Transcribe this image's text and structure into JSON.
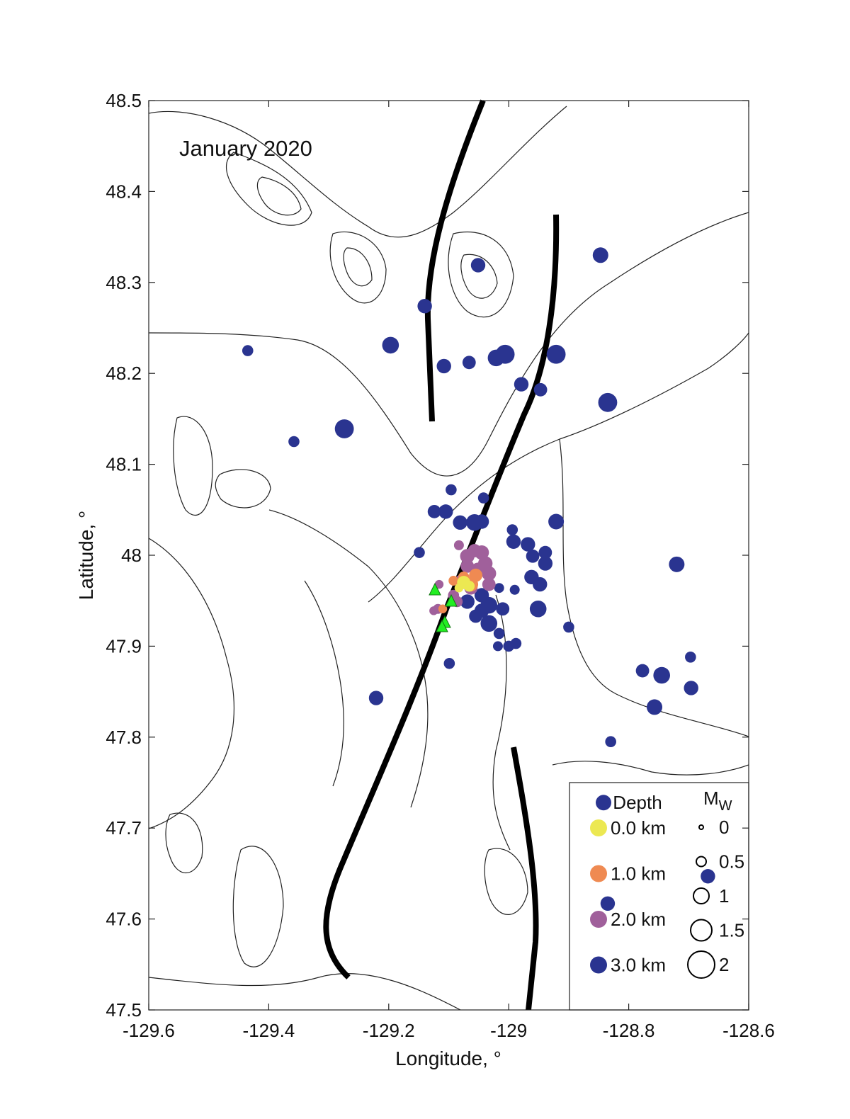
{
  "chart_data": {
    "type": "scatter",
    "title": "January 2020",
    "x_label": "Longitude, °",
    "y_label": "Latitude, °",
    "xlim": [
      -129.6,
      -128.6
    ],
    "ylim": [
      47.5,
      48.5
    ],
    "xticks": [
      -129.6,
      -129.4,
      -129.2,
      -129,
      -128.8,
      -128.6
    ],
    "yticks": [
      47.5,
      47.6,
      47.7,
      47.8,
      47.9,
      48,
      48.1,
      48.2,
      48.3,
      48.4,
      48.5
    ],
    "legend_title": "Depth",
    "legend_position": "lower right",
    "size_legend": {
      "title": "M",
      "title_sub": "W",
      "values": [
        0,
        0.5,
        1,
        1.5,
        2
      ]
    },
    "series": [
      {
        "name": "0.0 km",
        "color": "#ece852",
        "x": [
          -129.075,
          -129.066,
          -129.083
        ],
        "y": [
          47.97,
          47.966,
          47.964
        ],
        "sizes": [
          0.8,
          0.6,
          0.4
        ]
      },
      {
        "name": "1.0 km",
        "color": "#ef8a52",
        "x": [
          -129.063,
          -129.075,
          -129.092,
          -129.11,
          -129.055
        ],
        "y": [
          47.968,
          47.976,
          47.972,
          47.941,
          47.978
        ],
        "sizes": [
          0.9,
          0.6,
          0.5,
          0.4,
          0.8
        ]
      },
      {
        "name": "2.0 km",
        "color": "#a0609b",
        "x": [
          -129.069,
          -129.057,
          -129.045,
          -129.039,
          -129.051,
          -129.033,
          -129.069,
          -129.083,
          -129.081,
          -129.063,
          -129.092,
          -129.118,
          -129.125,
          -129.086,
          -129.033,
          -129.116
        ],
        "y": [
          47.999,
          48.005,
          48.003,
          47.991,
          47.984,
          47.98,
          47.988,
          48.011,
          47.972,
          47.964,
          47.956,
          47.941,
          47.939,
          47.949,
          47.968,
          47.968
        ],
        "sizes": [
          0.9,
          0.8,
          0.9,
          0.9,
          0.9,
          0.9,
          0.8,
          0.5,
          0.6,
          0.8,
          0.6,
          0.5,
          0.4,
          0.6,
          0.8,
          0.4
        ]
      },
      {
        "name": "3.0 km",
        "color": "#2a3490",
        "x": [
          -128.847,
          -129.051,
          -129.14,
          -129.197,
          -129.435,
          -129.108,
          -129.066,
          -129.021,
          -129.006,
          -128.921,
          -128.979,
          -128.947,
          -128.835,
          -129.274,
          -129.358,
          -129.096,
          -129.042,
          -129.124,
          -129.105,
          -129.081,
          -129.057,
          -129.045,
          -128.921,
          -129.149,
          -128.994,
          -128.992,
          -128.968,
          -128.96,
          -128.939,
          -128.939,
          -128.72,
          -128.962,
          -128.948,
          -129.045,
          -129.016,
          -128.99,
          -128.951,
          -129.033,
          -129.01,
          -129.055,
          -129.033,
          -129.016,
          -128.9,
          -129.018,
          -128.988,
          -129.0,
          -129.099,
          -128.697,
          -128.777,
          -128.745,
          -128.696,
          -128.757,
          -129.221,
          -128.83,
          -129.069,
          -129.045,
          -128.842,
          -128.668,
          -128.835
        ],
        "y": [
          48.33,
          48.319,
          48.274,
          48.231,
          48.225,
          48.208,
          48.212,
          48.217,
          48.221,
          48.221,
          48.188,
          48.182,
          48.168,
          48.139,
          48.125,
          48.072,
          48.063,
          48.048,
          48.048,
          48.036,
          48.036,
          48.037,
          48.037,
          48.003,
          48.028,
          48.015,
          48.012,
          47.999,
          48.003,
          47.991,
          47.99,
          47.976,
          47.968,
          47.956,
          47.964,
          47.962,
          47.941,
          47.945,
          47.941,
          47.933,
          47.925,
          47.914,
          47.921,
          47.9,
          47.903,
          47.9,
          47.881,
          47.888,
          47.873,
          47.868,
          47.854,
          47.833,
          47.843,
          47.795,
          47.949,
          47.939,
          47.728,
          47.647,
          47.617
        ],
        "sizes": [
          1.0,
          0.9,
          0.9,
          1.1,
          0.6,
          0.9,
          0.8,
          1.1,
          1.3,
          1.3,
          0.9,
          0.8,
          1.3,
          1.3,
          0.6,
          0.6,
          0.6,
          0.8,
          0.9,
          0.9,
          1.1,
          0.9,
          1.0,
          0.6,
          0.6,
          0.9,
          0.9,
          0.8,
          0.8,
          0.9,
          1.0,
          0.9,
          0.9,
          0.9,
          0.5,
          0.5,
          1.1,
          1.1,
          0.8,
          0.8,
          1.1,
          0.6,
          0.6,
          0.5,
          0.6,
          0.6,
          0.6,
          0.6,
          0.8,
          1.1,
          0.9,
          1.0,
          0.9,
          0.6,
          0.9,
          0.9,
          1.0,
          0.9,
          0.9
        ]
      }
    ]
  }
}
